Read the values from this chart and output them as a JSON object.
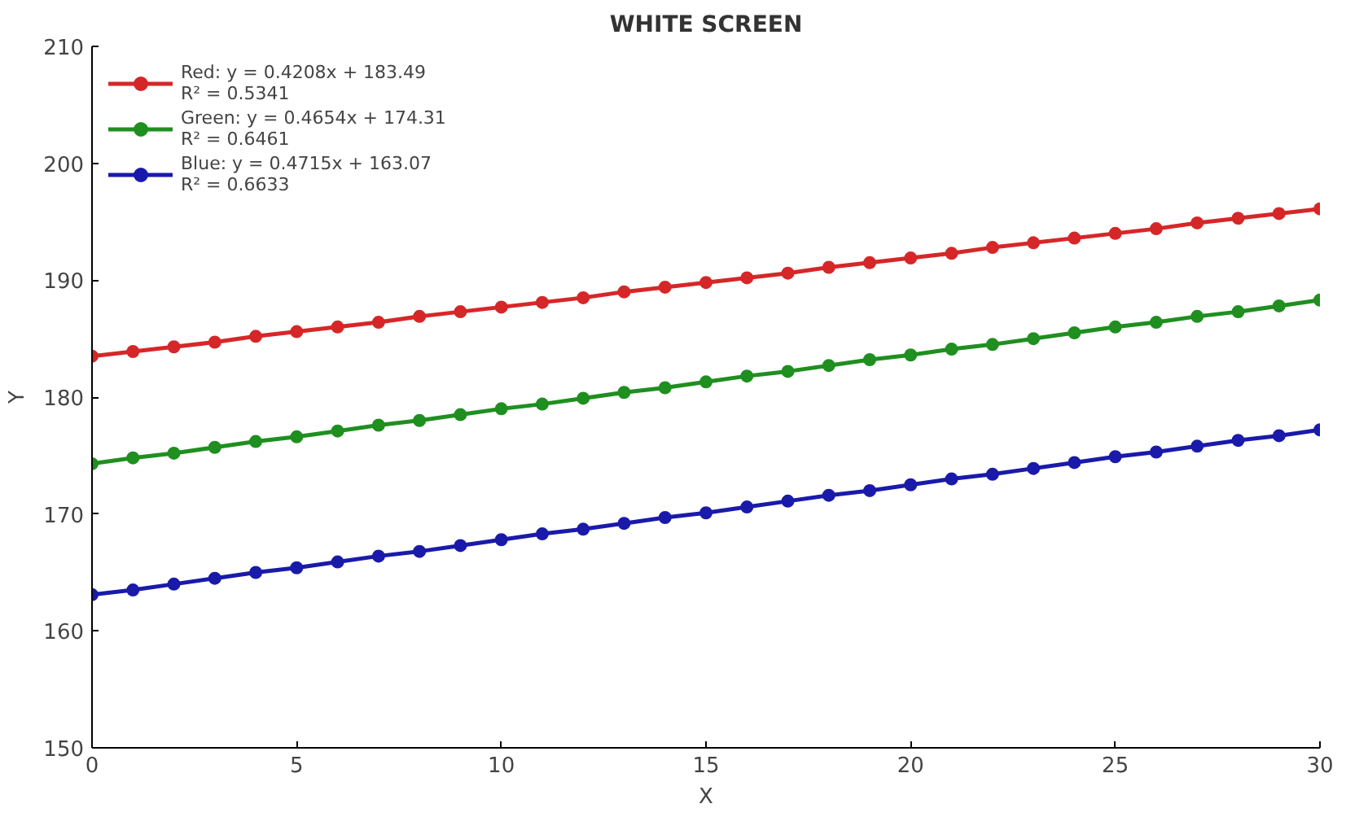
{
  "chart_data": {
    "type": "line",
    "title": "WHITE SCREEN",
    "xlabel": "X",
    "ylabel": "Y",
    "x": [
      0,
      1,
      2,
      3,
      4,
      5,
      6,
      7,
      8,
      9,
      10,
      11,
      12,
      13,
      14,
      15,
      16,
      17,
      18,
      19,
      20,
      21,
      22,
      23,
      24,
      25,
      26,
      27,
      28,
      29,
      30
    ],
    "series": [
      {
        "name": "Red: y = 0.4208x + 183.49\nR² = 0.5341",
        "color": "#d62728",
        "values": [
          183.5,
          183.9,
          184.3,
          184.7,
          185.2,
          185.6,
          186.0,
          186.4,
          186.9,
          187.3,
          187.7,
          188.1,
          188.5,
          189.0,
          189.4,
          189.8,
          190.2,
          190.6,
          191.1,
          191.5,
          191.9,
          192.3,
          192.8,
          193.2,
          193.6,
          194.0,
          194.4,
          194.9,
          195.3,
          195.7,
          196.1
        ]
      },
      {
        "name": "Green: y = 0.4654x + 174.31\nR² = 0.6461",
        "color": "#1f8f1f",
        "values": [
          174.3,
          174.8,
          175.2,
          175.7,
          176.2,
          176.6,
          177.1,
          177.6,
          178.0,
          178.5,
          179.0,
          179.4,
          179.9,
          180.4,
          180.8,
          181.3,
          181.8,
          182.2,
          182.7,
          183.2,
          183.6,
          184.1,
          184.5,
          185.0,
          185.5,
          186.0,
          186.4,
          186.9,
          187.3,
          187.8,
          188.3
        ]
      },
      {
        "name": "Blue: y = 0.4715x + 163.07\nR² = 0.6633",
        "color": "#1a1aaa",
        "values": [
          163.1,
          163.5,
          164.0,
          164.5,
          165.0,
          165.4,
          165.9,
          166.4,
          166.8,
          167.3,
          167.8,
          168.3,
          168.7,
          169.2,
          169.7,
          170.1,
          170.6,
          171.1,
          171.6,
          172.0,
          172.5,
          173.0,
          173.4,
          173.9,
          174.4,
          174.9,
          175.3,
          175.8,
          176.3,
          176.7,
          177.2
        ]
      }
    ],
    "xlim": [
      0,
      30
    ],
    "xticks": [
      0,
      5,
      10,
      15,
      20,
      25,
      30
    ],
    "ylim": [
      150,
      210
    ],
    "yticks": [
      150,
      160,
      170,
      180,
      190,
      200,
      210
    ],
    "grid": false,
    "legend": "top left",
    "marker": "circle",
    "line_style": "solid"
  }
}
